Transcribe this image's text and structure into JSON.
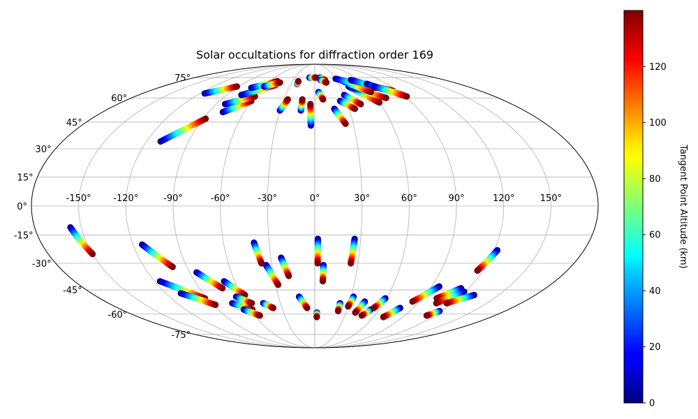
{
  "chart_data": {
    "type": "scatter",
    "projection": "mollweide",
    "title": "Solar occultations for diffraction order 169",
    "colorbar": {
      "label": "Tangent Point Altitude (km)",
      "colormap": "jet",
      "range": [
        0,
        140
      ],
      "ticks": [
        0,
        20,
        40,
        60,
        80,
        100,
        120
      ]
    },
    "grid": true,
    "longitude_ticks": [
      -150,
      -120,
      -90,
      -60,
      -30,
      0,
      30,
      60,
      90,
      120,
      150
    ],
    "longitude_labels": [
      "-150°",
      "-120°",
      "-90°",
      "-60°",
      "-30°",
      "0°",
      "30°",
      "60°",
      "90°",
      "120°",
      "150°"
    ],
    "latitude_ticks": [
      -75,
      -60,
      -45,
      -30,
      -15,
      0,
      15,
      30,
      45,
      60,
      75
    ],
    "latitude_labels": [
      "-75°",
      "-60°",
      "-45°",
      "-30°",
      "-15°",
      "0°",
      "15°",
      "30°",
      "45°",
      "60°",
      "75°"
    ],
    "tracks": [
      {
        "lon_start": -157,
        "lat_start": -11,
        "lon_end": -150,
        "lat_end": -25
      },
      {
        "lon_start": -114,
        "lat_start": -20,
        "lon_end": -100,
        "lat_end": -32
      },
      {
        "lon_start": -110,
        "lat_start": 34,
        "lon_end": -88,
        "lat_end": 47
      },
      {
        "lon_start": -116,
        "lat_start": -40,
        "lon_end": -92,
        "lat_end": -50
      },
      {
        "lon_start": -85,
        "lat_start": -35,
        "lon_end": -72,
        "lat_end": -44
      },
      {
        "lon_start": -108,
        "lat_start": -47,
        "lon_end": -88,
        "lat_end": -54
      },
      {
        "lon_start": -68,
        "lat_start": -40,
        "lon_end": -57,
        "lat_end": -48
      },
      {
        "lon_start": -72,
        "lat_start": -53,
        "lon_end": -58,
        "lat_end": -57
      },
      {
        "lon_start": -65,
        "lat_start": -49,
        "lon_end": -55,
        "lat_end": -53
      },
      {
        "lon_start": -66,
        "lat_start": -57,
        "lon_end": -55,
        "lat_end": -61
      },
      {
        "lon_start": -45,
        "lat_start": -53,
        "lon_end": -38,
        "lat_end": -56
      },
      {
        "lon_start": -40,
        "lat_start": -19,
        "lon_end": -37,
        "lat_end": -30
      },
      {
        "lon_start": -34,
        "lat_start": -31,
        "lon_end": -28,
        "lat_end": -42
      },
      {
        "lon_start": -23,
        "lat_start": -27,
        "lon_end": -19,
        "lat_end": -37
      },
      {
        "lon_start": -13,
        "lat_start": -49,
        "lon_end": -7,
        "lat_end": -56
      },
      {
        "lon_start": 2,
        "lat_start": -59,
        "lon_end": 2,
        "lat_end": -62
      },
      {
        "lon_start": 2,
        "lat_start": -17,
        "lon_end": 2,
        "lat_end": -30
      },
      {
        "lon_start": 6,
        "lat_start": -31,
        "lon_end": 6,
        "lat_end": -40
      },
      {
        "lon_start": 26,
        "lat_start": -17,
        "lon_end": 25,
        "lat_end": -30
      },
      {
        "lon_start": 22,
        "lat_start": -53,
        "lon_end": 22,
        "lat_end": -58
      },
      {
        "lon_start": 32,
        "lat_start": -49,
        "lon_end": 30,
        "lat_end": -55
      },
      {
        "lon_start": 43,
        "lat_start": -52,
        "lon_end": 39,
        "lat_end": -59
      },
      {
        "lon_start": 52,
        "lat_start": -57,
        "lon_end": 47,
        "lat_end": -61
      },
      {
        "lon_start": 59,
        "lat_start": -50,
        "lon_end": 54,
        "lat_end": -56
      },
      {
        "lon_start": 78,
        "lat_start": -56,
        "lon_end": 70,
        "lat_end": -62
      },
      {
        "lon_start": 96,
        "lat_start": -43,
        "lon_end": 84,
        "lat_end": -52
      },
      {
        "lon_start": 114,
        "lat_start": -44,
        "lon_end": 102,
        "lat_end": -50
      },
      {
        "lon_start": 119,
        "lat_start": -46,
        "lon_end": 106,
        "lat_end": -53
      },
      {
        "lon_start": 130,
        "lat_start": -48,
        "lon_end": 115,
        "lat_end": -53
      },
      {
        "lon_start": 122,
        "lat_start": -23,
        "lon_end": 116,
        "lat_end": -34
      },
      {
        "lon_start": 118,
        "lat_start": -58,
        "lon_end": 112,
        "lat_end": -61
      },
      {
        "lon_start": -115,
        "lat_start": 63,
        "lon_end": -92,
        "lat_end": 68
      },
      {
        "lon_start": -78,
        "lat_start": 51,
        "lon_end": -60,
        "lat_end": 58
      },
      {
        "lon_start": -82,
        "lat_start": 56,
        "lon_end": -60,
        "lat_end": 61
      },
      {
        "lon_start": -75,
        "lat_start": 62,
        "lon_end": -48,
        "lat_end": 69
      },
      {
        "lon_start": -73,
        "lat_start": 67,
        "lon_end": -50,
        "lat_end": 72
      },
      {
        "lon_start": -60,
        "lat_start": 68,
        "lon_end": -45,
        "lat_end": 71
      },
      {
        "lon_start": -30,
        "lat_start": 52,
        "lon_end": -26,
        "lat_end": 59
      },
      {
        "lon_start": -12,
        "lat_start": 52,
        "lon_end": -12,
        "lat_end": 59
      },
      {
        "lon_start": -3,
        "lat_start": 43,
        "lon_end": -4,
        "lat_end": 56
      },
      {
        "lon_start": -22,
        "lat_start": 70,
        "lon_end": -22,
        "lat_end": 72
      },
      {
        "lon_start": -8,
        "lat_start": 75,
        "lon_end": 2,
        "lat_end": 75
      },
      {
        "lon_start": 4,
        "lat_start": 64,
        "lon_end": 8,
        "lat_end": 59
      },
      {
        "lon_start": 8,
        "lat_start": 75,
        "lon_end": 14,
        "lat_end": 73
      },
      {
        "lon_start": 8,
        "lat_start": 73,
        "lon_end": 15,
        "lat_end": 71
      },
      {
        "lon_start": 17,
        "lat_start": 53,
        "lon_end": 24,
        "lat_end": 44
      },
      {
        "lon_start": 24,
        "lat_start": 58,
        "lon_end": 35,
        "lat_end": 53
      },
      {
        "lon_start": 30,
        "lat_start": 62,
        "lon_end": 42,
        "lat_end": 56
      },
      {
        "lon_start": 40,
        "lat_start": 68,
        "lon_end": 60,
        "lat_end": 57
      },
      {
        "lon_start": 45,
        "lat_start": 67,
        "lon_end": 70,
        "lat_end": 60
      },
      {
        "lon_start": 38,
        "lat_start": 72,
        "lon_end": 60,
        "lat_end": 64
      },
      {
        "lon_start": 30,
        "lat_start": 74,
        "lon_end": 70,
        "lat_end": 67
      },
      {
        "lon_start": 50,
        "lat_start": 73,
        "lon_end": 85,
        "lat_end": 65
      },
      {
        "lon_start": 65,
        "lat_start": 70,
        "lon_end": 90,
        "lat_end": 62
      },
      {
        "lon_start": 70,
        "lat_start": 68,
        "lon_end": 92,
        "lat_end": 61
      }
    ]
  }
}
